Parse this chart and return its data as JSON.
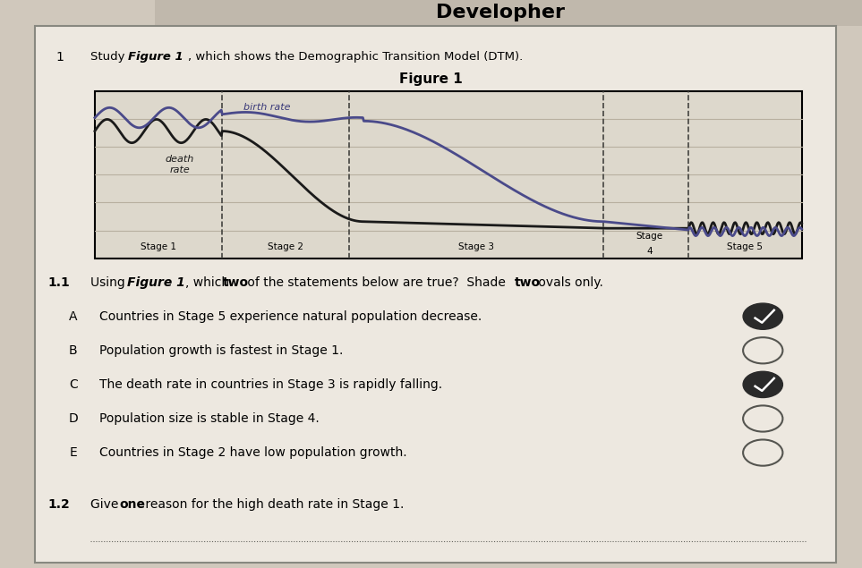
{
  "title_top": "Developher",
  "subtitle_parts": [
    {
      "text": "Study ",
      "bold": false,
      "italic": false
    },
    {
      "text": "Figure 1",
      "bold": true,
      "italic": true
    },
    {
      "text": ", which shows the Demographic Transition Model (DTM).",
      "bold": false,
      "italic": false
    }
  ],
  "figure_title": "Figure 1",
  "stage_labels": [
    "Stage 1",
    "Stage 2",
    "Stage 3",
    "Stage 4",
    "Stage 5"
  ],
  "birth_rate_label": "birth rate",
  "death_rate_label": "death\nrate",
  "stage_dividers": [
    0.18,
    0.36,
    0.72,
    0.84
  ],
  "options": [
    {
      "letter": "A",
      "text": "Countries in Stage 5 experience natural population decrease.",
      "filled": true
    },
    {
      "letter": "B",
      "text": "Population growth is fastest in Stage 1.",
      "filled": false
    },
    {
      "letter": "C",
      "text": "The death rate in countries in Stage 3 is rapidly falling.",
      "filled": true
    },
    {
      "letter": "D",
      "text": "Population size is stable in Stage 4.",
      "filled": false
    },
    {
      "letter": "E",
      "text": "Countries in Stage 2 have low population growth.",
      "filled": false
    }
  ],
  "bg_color": "#d0c8bc",
  "chart_bg": "#ddd8cc",
  "line_color_birth": "#4a4a8a",
  "line_color_death": "#1a1a1a",
  "grid_color": "#b8b0a0"
}
